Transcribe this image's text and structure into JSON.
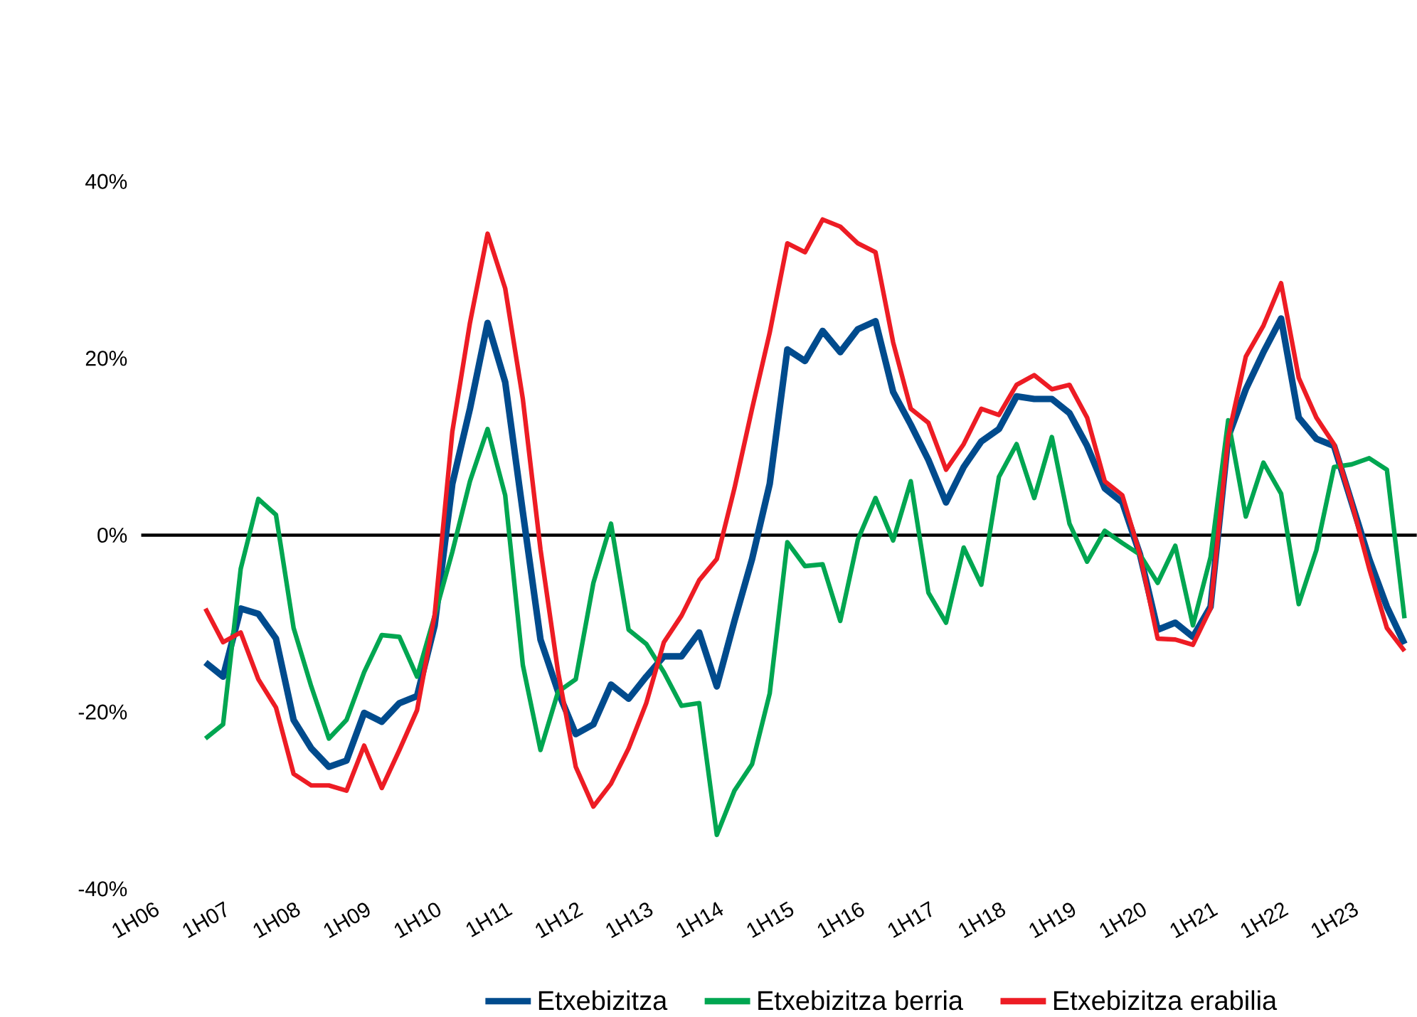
{
  "chart_data": {
    "type": "line",
    "categories": [
      "1H06",
      null,
      null,
      null,
      "1H07",
      null,
      null,
      null,
      "1H08",
      null,
      null,
      null,
      "1H09",
      null,
      null,
      null,
      "1H10",
      null,
      null,
      null,
      "1H11",
      null,
      null,
      null,
      "1H12",
      null,
      null,
      null,
      "1H13",
      null,
      null,
      null,
      "1H14",
      null,
      null,
      null,
      "1H15",
      null,
      null,
      null,
      "1H16",
      null,
      null,
      null,
      "1H17",
      null,
      null,
      null,
      "1H18",
      null,
      null,
      null,
      "1H19",
      null,
      null,
      null,
      "1H20",
      null,
      null,
      null,
      "1H21",
      null,
      null,
      null,
      "1H22",
      null,
      null,
      null,
      "1H23",
      null,
      null,
      null
    ],
    "series": [
      {
        "name": "Etxebizitza",
        "color": "#004b8d",
        "values": [
          null,
          null,
          null,
          -14.4,
          -16.0,
          -8.3,
          -8.9,
          -11.7,
          -20.9,
          -24.1,
          -26.2,
          -25.5,
          -20.1,
          -21.1,
          -19.0,
          -18.2,
          -10.2,
          5.8,
          14.3,
          24.0,
          17.3,
          2.6,
          -11.8,
          -17.7,
          -22.5,
          -21.4,
          -16.9,
          -18.5,
          -16.0,
          -13.7,
          -13.7,
          -11.0,
          -17.1,
          -9.7,
          -2.7,
          5.8,
          21.0,
          19.7,
          23.1,
          20.7,
          23.3,
          24.2,
          16.2,
          12.5,
          8.5,
          3.7,
          7.7,
          10.6,
          12.0,
          15.7,
          15.4,
          15.4,
          13.8,
          10.1,
          5.3,
          3.7,
          -2.2,
          -10.7,
          -9.9,
          -11.5,
          -8.1,
          11.1,
          16.5,
          20.7,
          24.5,
          13.3,
          10.9,
          10.1,
          3.7,
          -2.7,
          -8.1,
          -12.3
        ]
      },
      {
        "name": "Etxebizitza berria",
        "color": "#00a651",
        "values": [
          null,
          null,
          null,
          -23.0,
          -21.4,
          -3.8,
          4.1,
          2.3,
          -10.5,
          -17.1,
          -23.0,
          -20.9,
          -15.5,
          -11.3,
          -11.5,
          -16.0,
          -9.1,
          -1.9,
          6.1,
          12.0,
          4.5,
          -14.7,
          -24.3,
          -17.7,
          -16.3,
          -5.4,
          1.3,
          -10.7,
          -12.3,
          -15.5,
          -19.3,
          -19.0,
          -33.9,
          -28.9,
          -25.9,
          -17.9,
          -0.8,
          -3.5,
          -3.3,
          -9.7,
          -0.5,
          4.2,
          -0.6,
          6.1,
          -6.5,
          -9.9,
          -1.4,
          -5.6,
          6.6,
          10.3,
          4.2,
          11.1,
          1.3,
          -3.0,
          0.5,
          -0.9,
          -2.2,
          -5.4,
          -1.2,
          -10.2,
          -2.5,
          13.0,
          2.1,
          8.2,
          4.7,
          -7.8,
          -1.7,
          7.7,
          8.0,
          8.7,
          7.4,
          -9.4
        ]
      },
      {
        "name": "Etxebizitza erabilia",
        "color": "#ed1c24",
        "values": [
          null,
          null,
          null,
          -8.3,
          -12.1,
          -11.0,
          -16.3,
          -19.5,
          -27.0,
          -28.3,
          -28.3,
          -28.9,
          -23.8,
          -28.6,
          -24.3,
          -19.8,
          -9.0,
          11.7,
          24.0,
          34.1,
          27.9,
          15.4,
          -1.6,
          -15.5,
          -26.2,
          -30.7,
          -28.1,
          -24.1,
          -19.0,
          -12.1,
          -9.1,
          -5.1,
          -2.7,
          5.3,
          14.3,
          22.9,
          33.0,
          32.0,
          35.7,
          34.9,
          33.0,
          32.0,
          21.8,
          14.3,
          12.7,
          7.4,
          10.3,
          14.3,
          13.6,
          17.0,
          18.1,
          16.5,
          17.0,
          13.3,
          6.1,
          4.5,
          -2.2,
          -11.7,
          -11.8,
          -12.4,
          -8.3,
          11.1,
          20.2,
          23.7,
          28.5,
          17.8,
          13.3,
          10.3,
          3.7,
          -3.8,
          -10.5,
          -13.1
        ]
      }
    ],
    "ylim": [
      -40,
      40
    ],
    "yticks": [
      {
        "value": -40,
        "label": "-40%"
      },
      {
        "value": -20,
        "label": "-20%"
      },
      {
        "value": 0,
        "label": "0%"
      },
      {
        "value": 20,
        "label": "20%"
      },
      {
        "value": 40,
        "label": "40%"
      }
    ],
    "ref_lines": [
      {
        "axis": "y",
        "value": 0,
        "color": "#000000"
      }
    ],
    "legend": "bottom"
  }
}
